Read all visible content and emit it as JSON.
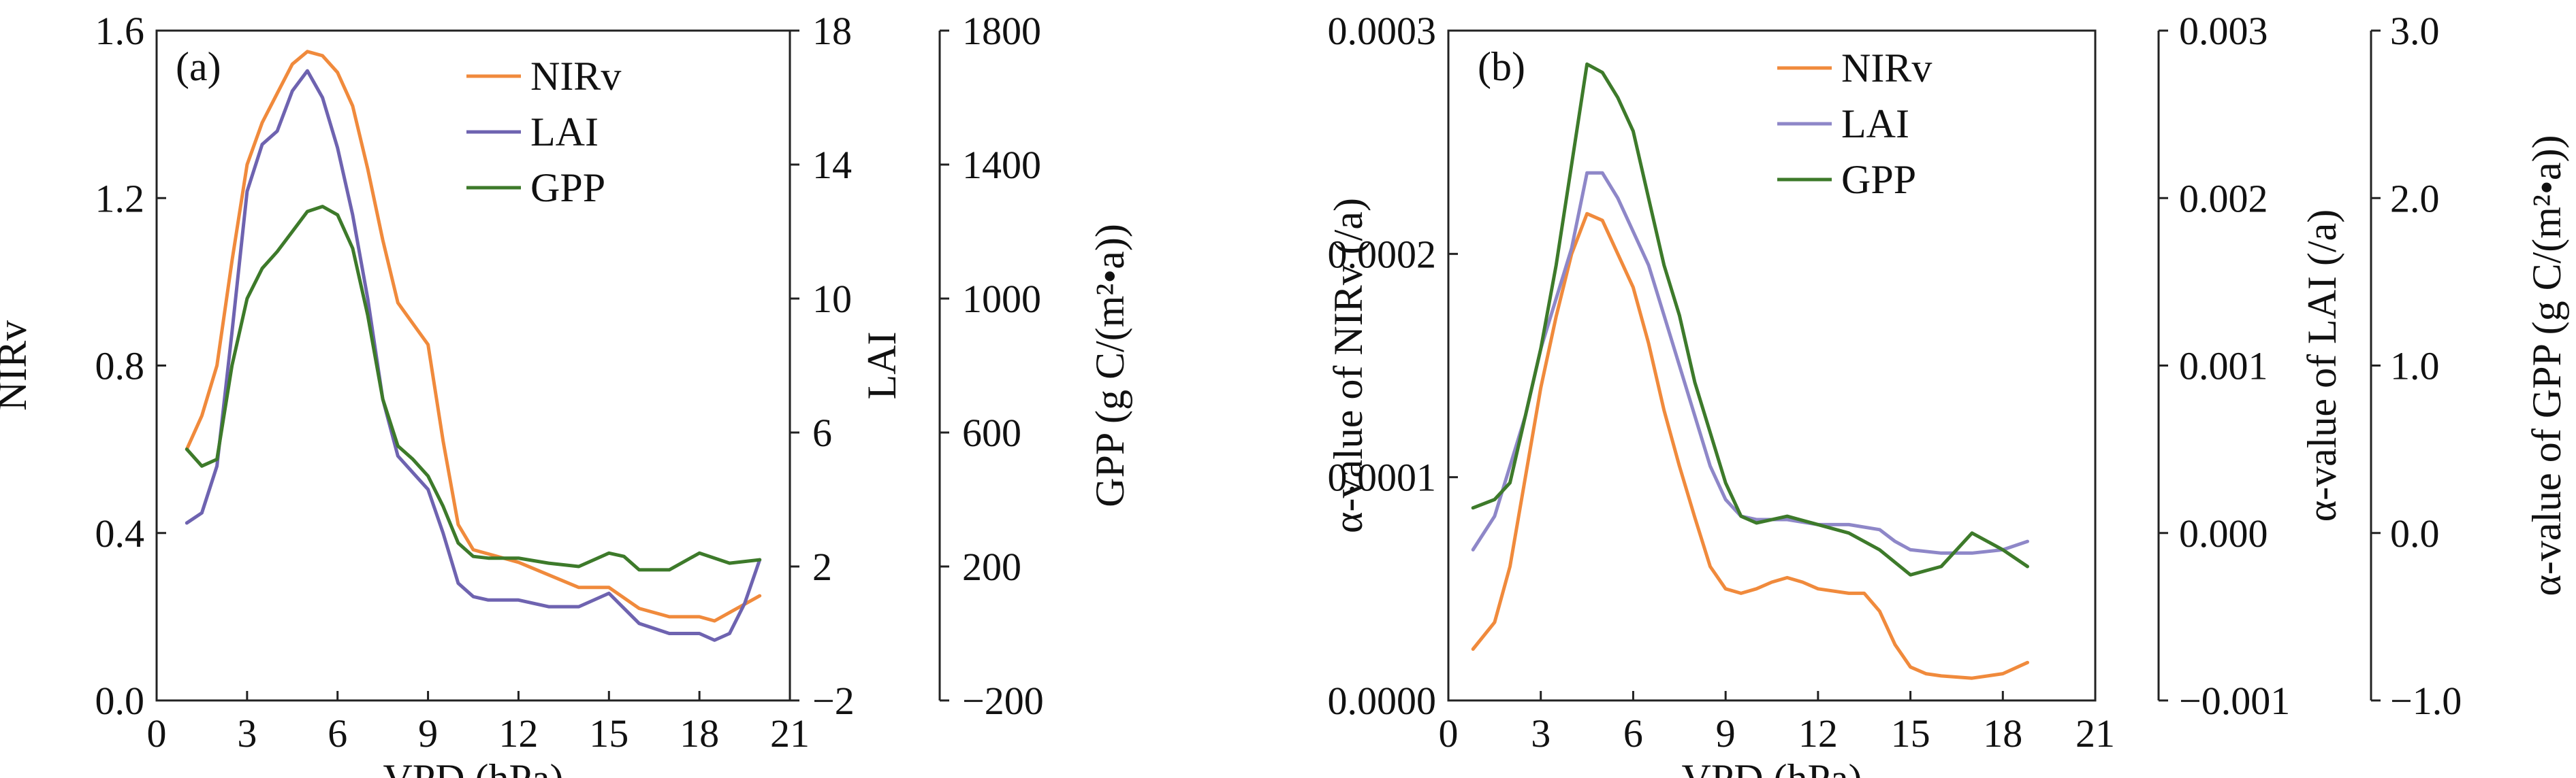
{
  "chart_data": [
    {
      "panel": "(a)",
      "type": "line",
      "xlabel": "VPD (hPa)",
      "xlim": [
        0,
        21
      ],
      "xticks": [
        "0",
        "3",
        "6",
        "9",
        "12",
        "15",
        "18",
        "21"
      ],
      "legend_position": "top-right",
      "axes": [
        {
          "id": "nirv",
          "side": "left",
          "label": "NIRv",
          "lim": [
            0,
            1.6
          ],
          "ticks": [
            "0.0",
            "0.4",
            "0.8",
            "1.2",
            "1.6"
          ]
        },
        {
          "id": "lai",
          "side": "right",
          "label": "LAI",
          "lim": [
            -2,
            18
          ],
          "ticks": [
            "−2",
            "2",
            "6",
            "10",
            "14",
            "18"
          ]
        },
        {
          "id": "gpp",
          "side": "right-outer",
          "label": "GPP (g C/(m²•a))",
          "lim": [
            -200,
            1800
          ],
          "ticks": [
            "−200",
            "200",
            "600",
            "1000",
            "1400",
            "1800"
          ]
        }
      ],
      "series": [
        {
          "name": "NIRv",
          "color": "#F08A3C",
          "axis": "nirv",
          "points": [
            [
              1.0,
              0.6
            ],
            [
              1.5,
              0.68
            ],
            [
              2.0,
              0.8
            ],
            [
              2.5,
              1.05
            ],
            [
              3.0,
              1.28
            ],
            [
              3.5,
              1.38
            ],
            [
              4.0,
              1.45
            ],
            [
              4.5,
              1.52
            ],
            [
              5.0,
              1.55
            ],
            [
              5.5,
              1.54
            ],
            [
              6.0,
              1.5
            ],
            [
              6.5,
              1.42
            ],
            [
              7.0,
              1.27
            ],
            [
              7.5,
              1.1
            ],
            [
              8.0,
              0.95
            ],
            [
              8.5,
              0.9
            ],
            [
              9.0,
              0.85
            ],
            [
              9.5,
              0.62
            ],
            [
              10.0,
              0.42
            ],
            [
              10.5,
              0.36
            ],
            [
              11.0,
              0.35
            ],
            [
              12.0,
              0.33
            ],
            [
              13.0,
              0.3
            ],
            [
              14.0,
              0.27
            ],
            [
              15.0,
              0.27
            ],
            [
              16.0,
              0.22
            ],
            [
              17.0,
              0.2
            ],
            [
              18.0,
              0.2
            ],
            [
              18.5,
              0.19
            ],
            [
              19.0,
              0.21
            ],
            [
              20.0,
              0.25
            ]
          ]
        },
        {
          "name": "LAI",
          "color": "#6E63B0",
          "axis": "lai",
          "points": [
            [
              1.0,
              3.3
            ],
            [
              1.5,
              3.6
            ],
            [
              2.0,
              5.0
            ],
            [
              2.5,
              9.0
            ],
            [
              3.0,
              13.2
            ],
            [
              3.5,
              14.6
            ],
            [
              4.0,
              15.0
            ],
            [
              4.5,
              16.2
            ],
            [
              5.0,
              16.8
            ],
            [
              5.5,
              16.0
            ],
            [
              6.0,
              14.5
            ],
            [
              6.5,
              12.5
            ],
            [
              7.0,
              10.0
            ],
            [
              7.5,
              7.0
            ],
            [
              8.0,
              5.3
            ],
            [
              8.5,
              4.8
            ],
            [
              9.0,
              4.3
            ],
            [
              9.5,
              3.0
            ],
            [
              10.0,
              1.5
            ],
            [
              10.5,
              1.1
            ],
            [
              11.0,
              1.0
            ],
            [
              12.0,
              1.0
            ],
            [
              13.0,
              0.8
            ],
            [
              14.0,
              0.8
            ],
            [
              15.0,
              1.2
            ],
            [
              16.0,
              0.3
            ],
            [
              17.0,
              0.0
            ],
            [
              18.0,
              0.0
            ],
            [
              18.5,
              -0.2
            ],
            [
              19.0,
              0.0
            ],
            [
              19.5,
              0.9
            ],
            [
              20.0,
              2.2
            ]
          ]
        },
        {
          "name": "GPP",
          "color": "#3D7A2A",
          "axis": "gpp",
          "points": [
            [
              1.0,
              550
            ],
            [
              1.5,
              500
            ],
            [
              2.0,
              520
            ],
            [
              2.5,
              800
            ],
            [
              3.0,
              1000
            ],
            [
              3.5,
              1090
            ],
            [
              4.0,
              1140
            ],
            [
              4.5,
              1200
            ],
            [
              5.0,
              1260
            ],
            [
              5.5,
              1275
            ],
            [
              6.0,
              1250
            ],
            [
              6.5,
              1150
            ],
            [
              7.0,
              950
            ],
            [
              7.5,
              700
            ],
            [
              8.0,
              560
            ],
            [
              8.5,
              520
            ],
            [
              9.0,
              470
            ],
            [
              9.5,
              380
            ],
            [
              10.0,
              270
            ],
            [
              10.5,
              230
            ],
            [
              11.0,
              225
            ],
            [
              12.0,
              225
            ],
            [
              13.0,
              210
            ],
            [
              14.0,
              200
            ],
            [
              15.0,
              240
            ],
            [
              15.5,
              230
            ],
            [
              16.0,
              190
            ],
            [
              17.0,
              190
            ],
            [
              18.0,
              240
            ],
            [
              19.0,
              210
            ],
            [
              20.0,
              220
            ]
          ]
        }
      ]
    },
    {
      "panel": "(b)",
      "type": "line",
      "xlabel": "VPD (hPa)",
      "xlim": [
        0,
        21
      ],
      "xticks": [
        "0",
        "3",
        "6",
        "9",
        "12",
        "15",
        "18",
        "21"
      ],
      "legend_position": "top-right",
      "axes": [
        {
          "id": "nirv",
          "side": "left",
          "label": "α-value of NIRv (/a)",
          "lim": [
            0,
            0.0003
          ],
          "ticks": [
            "0.0000",
            "0.0001",
            "0.0002",
            "0.0003"
          ]
        },
        {
          "id": "lai",
          "side": "right",
          "label": "α-value of LAI (/a)",
          "lim": [
            -0.001,
            0.003
          ],
          "ticks": [
            "−0.001",
            "0.000",
            "0.001",
            "0.002",
            "0.003"
          ]
        },
        {
          "id": "gpp",
          "side": "right-outer",
          "label": "α-value of GPP (g C/(m²•a))",
          "lim": [
            -1.0,
            3.0
          ],
          "ticks": [
            "−1.0",
            "0.0",
            "1.0",
            "2.0",
            "3.0"
          ]
        }
      ],
      "series": [
        {
          "name": "NIRv",
          "color": "#F08A3C",
          "axis": "nirv",
          "points": [
            [
              0.8,
              2.3e-05
            ],
            [
              1.5,
              3.5e-05
            ],
            [
              2.0,
              6e-05
            ],
            [
              2.5,
              0.0001
            ],
            [
              3.0,
              0.00014
            ],
            [
              3.5,
              0.000172
            ],
            [
              4.0,
              0.0002
            ],
            [
              4.5,
              0.000218
            ],
            [
              5.0,
              0.000215
            ],
            [
              5.5,
              0.0002
            ],
            [
              6.0,
              0.000185
            ],
            [
              6.5,
              0.00016
            ],
            [
              7.0,
              0.00013
            ],
            [
              7.5,
              0.000105
            ],
            [
              8.0,
              8.2e-05
            ],
            [
              8.5,
              6e-05
            ],
            [
              9.0,
              5e-05
            ],
            [
              9.5,
              4.8e-05
            ],
            [
              10.0,
              5e-05
            ],
            [
              10.5,
              5.3e-05
            ],
            [
              11.0,
              5.5e-05
            ],
            [
              11.5,
              5.3e-05
            ],
            [
              12.0,
              5e-05
            ],
            [
              13.0,
              4.8e-05
            ],
            [
              13.5,
              4.8e-05
            ],
            [
              14.0,
              4e-05
            ],
            [
              14.5,
              2.5e-05
            ],
            [
              15.0,
              1.5e-05
            ],
            [
              15.5,
              1.2e-05
            ],
            [
              16.0,
              1.1e-05
            ],
            [
              17.0,
              1e-05
            ],
            [
              18.0,
              1.2e-05
            ],
            [
              18.8,
              1.7e-05
            ]
          ]
        },
        {
          "name": "LAI",
          "color": "#8E87C8",
          "axis": "lai",
          "points": [
            [
              0.8,
              -0.0001
            ],
            [
              1.5,
              0.0001
            ],
            [
              2.0,
              0.0004
            ],
            [
              2.5,
              0.0007
            ],
            [
              3.0,
              0.0011
            ],
            [
              3.5,
              0.0014
            ],
            [
              4.0,
              0.0017
            ],
            [
              4.5,
              0.00215
            ],
            [
              5.0,
              0.00215
            ],
            [
              5.5,
              0.002
            ],
            [
              6.0,
              0.0018
            ],
            [
              6.5,
              0.0016
            ],
            [
              7.0,
              0.0013
            ],
            [
              7.5,
              0.001
            ],
            [
              8.0,
              0.0007
            ],
            [
              8.5,
              0.0004
            ],
            [
              9.0,
              0.0002
            ],
            [
              9.5,
              0.0001
            ],
            [
              10.0,
              8e-05
            ],
            [
              11.0,
              8e-05
            ],
            [
              12.0,
              5e-05
            ],
            [
              13.0,
              5e-05
            ],
            [
              14.0,
              2e-05
            ],
            [
              14.5,
              -5e-05
            ],
            [
              15.0,
              -0.0001
            ],
            [
              16.0,
              -0.00012
            ],
            [
              17.0,
              -0.00012
            ],
            [
              18.0,
              -0.0001
            ],
            [
              18.8,
              -5e-05
            ]
          ]
        },
        {
          "name": "GPP",
          "color": "#3D7A2A",
          "axis": "gpp",
          "points": [
            [
              0.8,
              0.15
            ],
            [
              1.5,
              0.2
            ],
            [
              2.0,
              0.3
            ],
            [
              2.5,
              0.7
            ],
            [
              3.0,
              1.1
            ],
            [
              3.5,
              1.6
            ],
            [
              4.0,
              2.2
            ],
            [
              4.5,
              2.8
            ],
            [
              5.0,
              2.75
            ],
            [
              5.5,
              2.6
            ],
            [
              6.0,
              2.4
            ],
            [
              6.5,
              2.0
            ],
            [
              7.0,
              1.6
            ],
            [
              7.5,
              1.3
            ],
            [
              8.0,
              0.9
            ],
            [
              8.5,
              0.6
            ],
            [
              9.0,
              0.3
            ],
            [
              9.5,
              0.1
            ],
            [
              10.0,
              0.06
            ],
            [
              11.0,
              0.1
            ],
            [
              12.0,
              0.05
            ],
            [
              13.0,
              0.0
            ],
            [
              14.0,
              -0.1
            ],
            [
              15.0,
              -0.25
            ],
            [
              16.0,
              -0.2
            ],
            [
              17.0,
              0.0
            ],
            [
              18.0,
              -0.1
            ],
            [
              18.8,
              -0.2
            ]
          ]
        }
      ]
    }
  ]
}
